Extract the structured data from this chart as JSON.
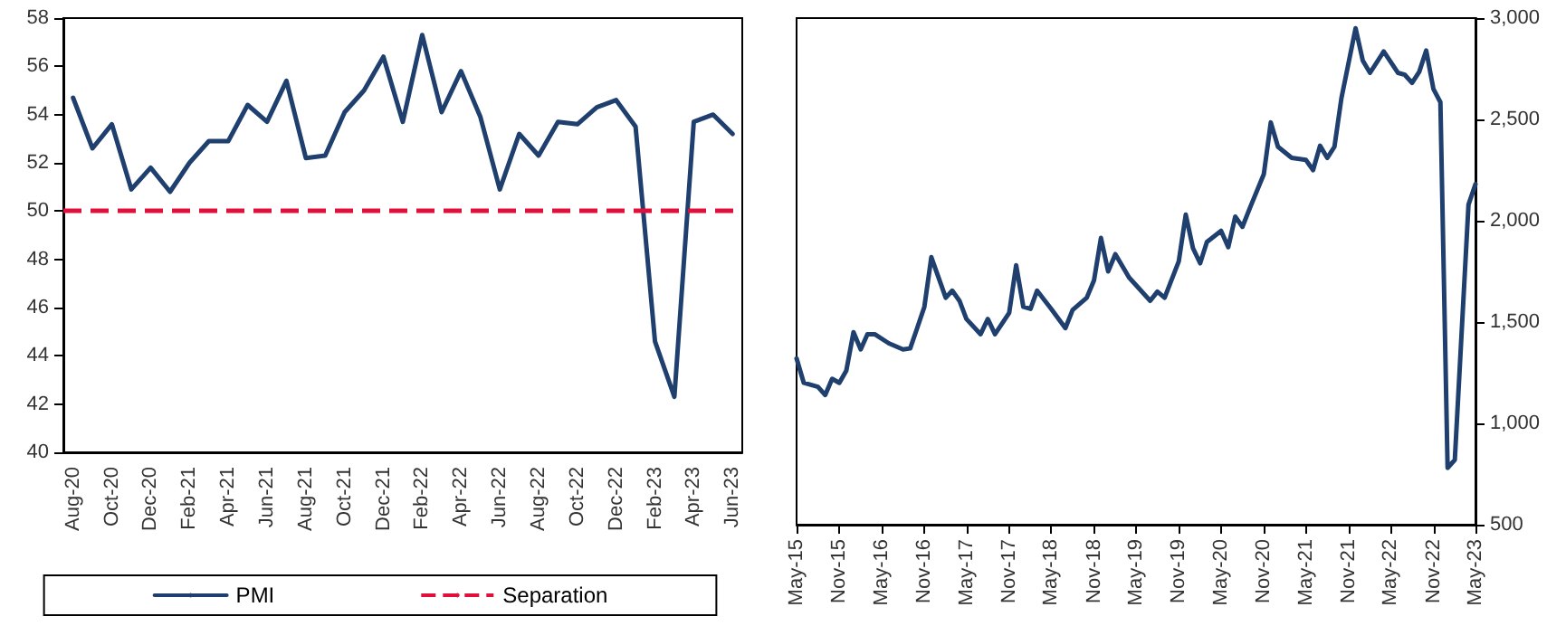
{
  "chart_data": [
    {
      "type": "line",
      "categories": [
        "Aug-20",
        null,
        "Oct-20",
        null,
        "Dec-20",
        null,
        "Feb-21",
        null,
        "Apr-21",
        null,
        "Jun-21",
        null,
        "Aug-21",
        null,
        "Oct-21",
        null,
        "Dec-21",
        null,
        "Feb-22",
        null,
        "Apr-22",
        null,
        "Jun-22",
        null,
        "Aug-22",
        null,
        "Oct-22",
        null,
        "Dec-22",
        null,
        "Feb-23",
        null,
        "Apr-23",
        null,
        "Jun-23"
      ],
      "series": [
        {
          "name": "PMI",
          "color": "#1f3f6e",
          "values": [
            54.7,
            52.6,
            53.6,
            50.9,
            51.8,
            50.8,
            52.0,
            52.9,
            52.9,
            54.4,
            53.7,
            55.4,
            52.2,
            52.3,
            54.1,
            55.0,
            56.4,
            53.7,
            57.3,
            54.1,
            55.8,
            53.9,
            50.9,
            53.2,
            52.3,
            53.7,
            53.6,
            54.3,
            54.6,
            53.5,
            44.6,
            42.3,
            53.7,
            54.0,
            53.2
          ]
        }
      ],
      "ylim": [
        40,
        58
      ],
      "yticks": [
        40,
        42,
        44,
        46,
        48,
        50,
        52,
        54,
        56,
        58
      ],
      "ref_lines": [
        {
          "axis": "y",
          "value": 50,
          "label": "Separation",
          "color": "#e0103a",
          "line_style": "dashed"
        }
      ],
      "grid": false,
      "legend": "bottom",
      "marker": "none",
      "line_style": "solid"
    },
    {
      "type": "line",
      "x": [
        "2015-05",
        "2015-06",
        "2015-08",
        "2015-09",
        "2015-10",
        "2015-11",
        "2015-12",
        "2016-01",
        "2016-02",
        "2016-03",
        "2016-04",
        "2016-06",
        "2016-08",
        "2016-09",
        "2016-10",
        "2016-11",
        "2016-12",
        "2017-02",
        "2017-03",
        "2017-04",
        "2017-05",
        "2017-07",
        "2017-08",
        "2017-09",
        "2017-11",
        "2017-12",
        "2018-01",
        "2018-02",
        "2018-03",
        "2018-05",
        "2018-07",
        "2018-08",
        "2018-10",
        "2018-11",
        "2018-12",
        "2019-01",
        "2019-02",
        "2019-04",
        "2019-07",
        "2019-08",
        "2019-09",
        "2019-11",
        "2019-12",
        "2020-01",
        "2020-02",
        "2020-03",
        "2020-05",
        "2020-06",
        "2020-07",
        "2020-08",
        "2020-09",
        "2020-11",
        "2020-12",
        "2021-01",
        "2021-03",
        "2021-05",
        "2021-06",
        "2021-07",
        "2021-08",
        "2021-09",
        "2021-10",
        "2021-12",
        "2022-01",
        "2022-02",
        "2022-04",
        "2022-06",
        "2022-07",
        "2022-08",
        "2022-09",
        "2022-10",
        "2022-11",
        "2022-12",
        "2023-01",
        "2023-02",
        "2023-04",
        "2023-05"
      ],
      "series": [
        {
          "color": "#1f3f6e",
          "axis": "y2",
          "values": [
            1320,
            1200,
            1180,
            1140,
            1220,
            1200,
            1260,
            1450,
            1365,
            1440,
            1440,
            1395,
            1365,
            1370,
            1470,
            1575,
            1820,
            1620,
            1655,
            1605,
            1515,
            1440,
            1515,
            1440,
            1545,
            1780,
            1575,
            1565,
            1655,
            1565,
            1470,
            1560,
            1620,
            1705,
            1915,
            1750,
            1835,
            1720,
            1605,
            1650,
            1620,
            1800,
            2030,
            1865,
            1790,
            1895,
            1950,
            1870,
            2020,
            1970,
            2060,
            2230,
            2485,
            2365,
            2310,
            2300,
            2250,
            2370,
            2310,
            2365,
            2605,
            2950,
            2790,
            2730,
            2835,
            2730,
            2720,
            2680,
            2735,
            2840,
            2650,
            2585,
            780,
            820,
            2080,
            2180
          ]
        }
      ],
      "xlim": [
        "2015-05",
        "2023-05"
      ],
      "xticks": [
        {
          "value": "2015-05",
          "label": "May-15"
        },
        {
          "value": "2015-11",
          "label": "Nov-15"
        },
        {
          "value": "2016-05",
          "label": "May-16"
        },
        {
          "value": "2016-11",
          "label": "Nov-16"
        },
        {
          "value": "2017-05",
          "label": "May-17"
        },
        {
          "value": "2017-11",
          "label": "Nov-17"
        },
        {
          "value": "2018-05",
          "label": "May-18"
        },
        {
          "value": "2018-11",
          "label": "Nov-18"
        },
        {
          "value": "2019-05",
          "label": "May-19"
        },
        {
          "value": "2019-11",
          "label": "Nov-19"
        },
        {
          "value": "2020-05",
          "label": "May-20"
        },
        {
          "value": "2020-11",
          "label": "Nov-20"
        },
        {
          "value": "2021-05",
          "label": "May-21"
        },
        {
          "value": "2021-11",
          "label": "Nov-21"
        },
        {
          "value": "2022-05",
          "label": "May-22"
        },
        {
          "value": "2022-11",
          "label": "Nov-22"
        },
        {
          "value": "2023-05",
          "label": "May-23"
        }
      ],
      "y2lim": [
        500,
        3000
      ],
      "y2ticks": [
        500,
        {
          "value": 1000,
          "label": "1,000"
        },
        {
          "value": 1500,
          "label": "1,500"
        },
        {
          "value": 2000,
          "label": "2,000"
        },
        {
          "value": 2500,
          "label": "2,500"
        },
        {
          "value": 3000,
          "label": "3,000"
        }
      ],
      "grid": false,
      "legend": false,
      "marker": "none",
      "line_style": "solid"
    }
  ]
}
